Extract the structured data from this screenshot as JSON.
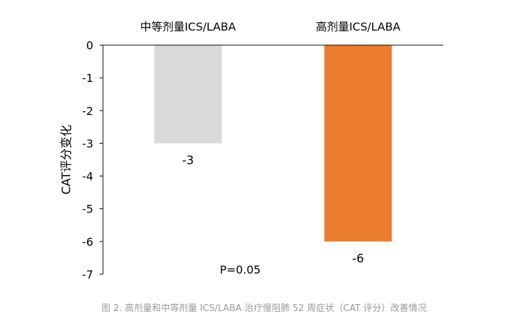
{
  "chart_data": {
    "type": "bar",
    "categories": [
      "中等剂量ICS/LABA",
      "高剂量ICS/LABA"
    ],
    "values": [
      -3,
      -6
    ],
    "data_labels": [
      "-3",
      "-6"
    ],
    "ylabel": "CAT评分变化",
    "ylim": [
      -7,
      0
    ],
    "yticks": [
      "0",
      "-1",
      "-2",
      "-3",
      "-4",
      "-5",
      "-6",
      "-7"
    ],
    "category_position": "top",
    "annotation": "P=0.05",
    "grid": false,
    "colors": [
      "#d9d9d9",
      "#ed7d31"
    ]
  },
  "caption": "图 2. 高剂量和中等剂量 ICS/LABA 治疗慢阻肺 52 周症状（CAT 评分）改善情况"
}
